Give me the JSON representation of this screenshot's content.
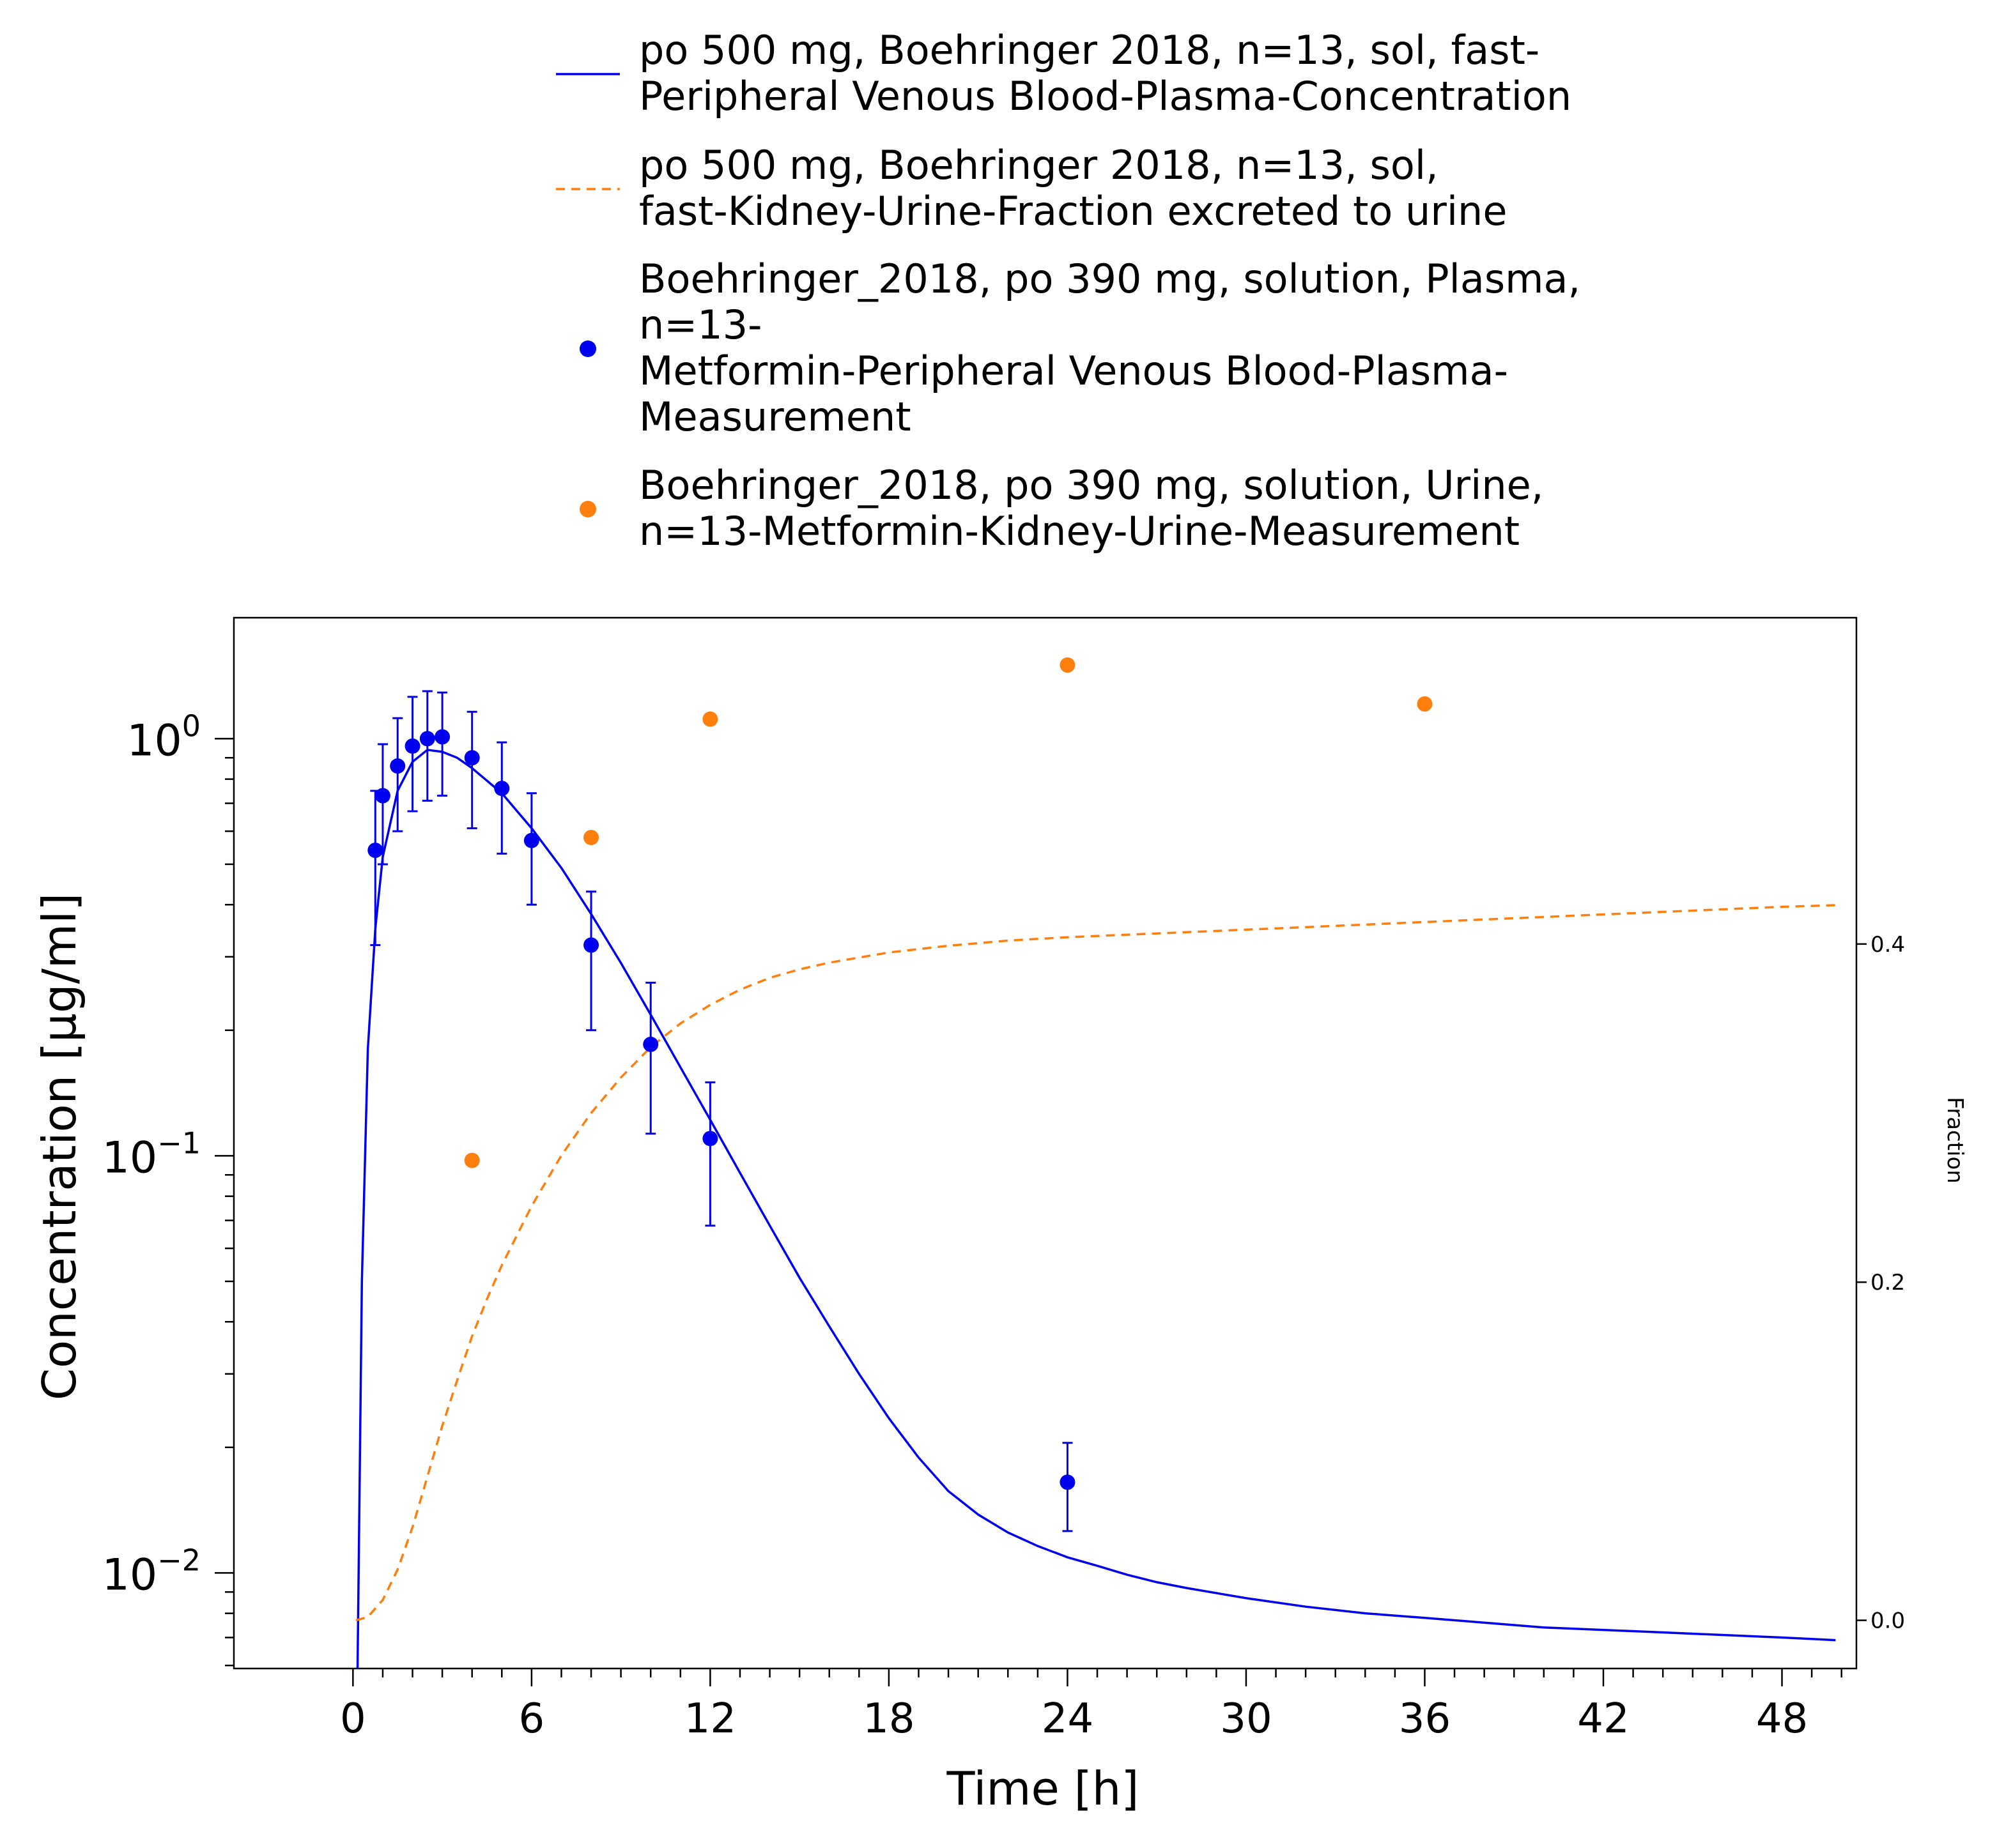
{
  "chart_data": {
    "type": "line",
    "xlabel": "Time [h]",
    "ylabel": "Concentration [µg/ml]",
    "y2label": "Fraction",
    "xlim": [
      -4,
      50.5
    ],
    "ylim": [
      0.0059,
      1.95
    ],
    "yscale": "log",
    "y2lim": [
      -0.0285,
      0.593
    ],
    "x_ticks": [
      0,
      6,
      12,
      18,
      24,
      30,
      36,
      42,
      48
    ],
    "y_ticks": [
      {
        "value": 1,
        "base": "10",
        "exp": "0"
      },
      {
        "value": 0.1,
        "base": "10",
        "exp": "−1"
      },
      {
        "value": 0.01,
        "base": "10",
        "exp": "−2"
      }
    ],
    "y2_ticks": [
      0.0,
      0.2,
      0.4
    ],
    "y2_tick_labels": [
      "0.0",
      "0.2",
      "0.4"
    ],
    "legend_position": "top",
    "series": [
      {
        "name": "po 500 mg, Boehringer 2018, n=13, sol, fast-Peripheral Venous Blood-Plasma-Concentration",
        "legend_lines": [
          "po 500 mg, Boehringer 2018, n=13, sol, fast-",
          "Peripheral Venous Blood-Plasma-Concentration"
        ],
        "kind": "line",
        "axis": "left",
        "color": "#0000ee",
        "dash": "solid",
        "x": [
          0.15,
          0.3,
          0.5,
          0.75,
          1.0,
          1.5,
          2.0,
          2.5,
          3.0,
          3.5,
          4.0,
          5.0,
          6.0,
          7.0,
          8.0,
          9.0,
          10.0,
          11.0,
          12.0,
          13.0,
          14.0,
          15.0,
          16.0,
          17.0,
          18.0,
          19.0,
          20.0,
          21.0,
          22.0,
          23.0,
          24.0,
          25.0,
          26.0,
          27.0,
          28.0,
          30.0,
          32.0,
          34.0,
          36.0,
          38.0,
          40.0,
          42.0,
          44.0,
          46.0,
          48.0,
          49.8
        ],
        "y": [
          0.0055,
          0.05,
          0.18,
          0.35,
          0.52,
          0.75,
          0.88,
          0.94,
          0.93,
          0.9,
          0.85,
          0.74,
          0.61,
          0.49,
          0.38,
          0.29,
          0.218,
          0.163,
          0.122,
          0.091,
          0.068,
          0.051,
          0.039,
          0.03,
          0.0235,
          0.0189,
          0.0157,
          0.0138,
          0.0125,
          0.0116,
          0.0109,
          0.0104,
          0.0099,
          0.0095,
          0.0092,
          0.0087,
          0.0083,
          0.008,
          0.0078,
          0.0076,
          0.0074,
          0.0073,
          0.0072,
          0.0071,
          0.007,
          0.0069
        ]
      },
      {
        "name": "po 500 mg, Boehringer 2018, n=13, sol, fast-Kidney-Urine-Fraction excreted to urine",
        "legend_lines": [
          "po 500 mg, Boehringer 2018, n=13, sol,",
          "fast-Kidney-Urine-Fraction excreted to urine"
        ],
        "kind": "line",
        "axis": "right",
        "color": "#ff7f0e",
        "dash": "dashed",
        "x": [
          0.1,
          0.5,
          1.0,
          1.5,
          2.0,
          2.5,
          3.0,
          3.5,
          4.0,
          4.5,
          5.0,
          6.0,
          7.0,
          8.0,
          9.0,
          10.0,
          11.0,
          12.0,
          13.0,
          14.0,
          15.0,
          16.0,
          18.0,
          20.0,
          22.0,
          24.0,
          28.0,
          32.0,
          36.0,
          40.0,
          44.0,
          48.0,
          49.8
        ],
        "y": [
          0.0,
          0.002,
          0.012,
          0.03,
          0.055,
          0.085,
          0.115,
          0.142,
          0.168,
          0.19,
          0.21,
          0.245,
          0.275,
          0.3,
          0.321,
          0.339,
          0.353,
          0.364,
          0.373,
          0.38,
          0.385,
          0.389,
          0.395,
          0.399,
          0.402,
          0.404,
          0.407,
          0.41,
          0.413,
          0.416,
          0.419,
          0.422,
          0.423
        ]
      },
      {
        "name": "Boehringer_2018, po 390 mg, solution, Plasma, n=13-Metformin-Peripheral Venous Blood-Plasma-Measurement",
        "legend_lines": [
          "Boehringer_2018, po 390 mg, solution, Plasma,",
          "n=13-",
          "Metformin-Peripheral Venous Blood-Plasma-",
          "Measurement"
        ],
        "kind": "scatter",
        "axis": "left",
        "color": "#0000ee",
        "x": [
          0.75,
          1.0,
          1.5,
          2.0,
          2.5,
          3.0,
          4.0,
          5.0,
          6.0,
          8.0,
          10.0,
          12.0,
          24.0
        ],
        "y": [
          0.54,
          0.73,
          0.86,
          0.96,
          1.0,
          1.01,
          0.9,
          0.76,
          0.57,
          0.32,
          0.185,
          0.11,
          0.0165
        ],
        "err_low": [
          0.32,
          0.5,
          0.6,
          0.67,
          0.71,
          0.73,
          0.61,
          0.53,
          0.4,
          0.2,
          0.113,
          0.068,
          0.0126
        ],
        "err_high": [
          0.75,
          0.97,
          1.12,
          1.26,
          1.3,
          1.29,
          1.16,
          0.98,
          0.74,
          0.43,
          0.26,
          0.15,
          0.0205
        ]
      },
      {
        "name": "Boehringer_2018, po 390 mg, solution, Urine, n=13-Metformin-Kidney-Urine-Measurement",
        "legend_lines": [
          "Boehringer_2018, po 390 mg, solution, Urine,",
          "n=13-Metformin-Kidney-Urine-Measurement"
        ],
        "kind": "scatter",
        "axis": "right",
        "color": "#ff7f0e",
        "x": [
          4.0,
          8.0,
          12.0,
          24.0,
          36.0
        ],
        "y": [
          0.272,
          0.463,
          0.533,
          0.565,
          0.542
        ]
      }
    ]
  }
}
